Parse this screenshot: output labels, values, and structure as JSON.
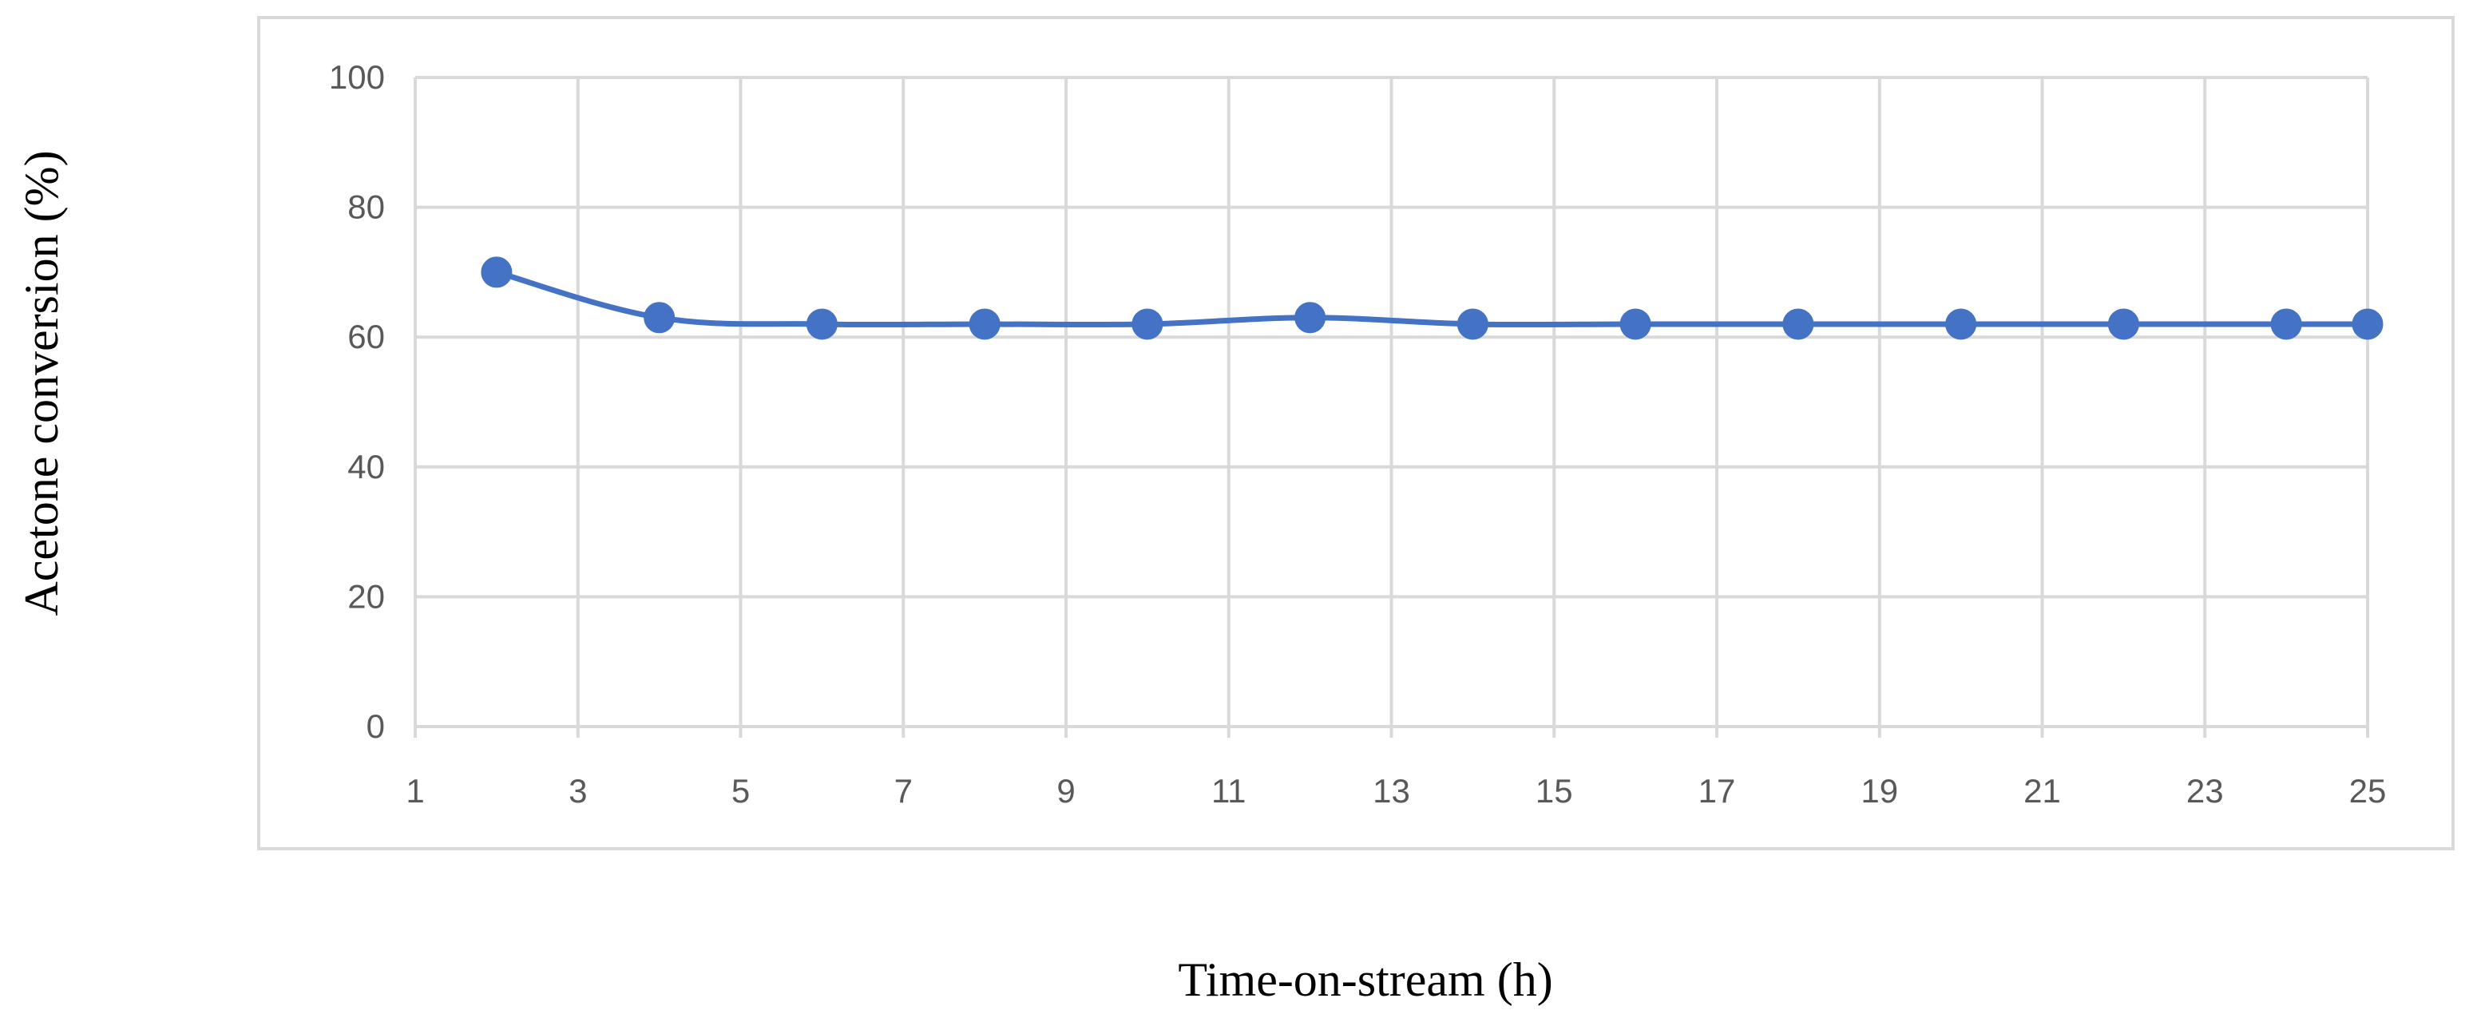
{
  "chart_data": {
    "type": "line",
    "title": "",
    "xlabel": "Time-on-stream (h)",
    "ylabel": "Acetone conversion (%)",
    "xlim": [
      1,
      25
    ],
    "ylim": [
      0,
      100
    ],
    "x_ticks": [
      1,
      3,
      5,
      7,
      9,
      11,
      13,
      15,
      17,
      19,
      21,
      23,
      25
    ],
    "y_ticks": [
      0,
      20,
      40,
      60,
      80,
      100
    ],
    "grid": true,
    "legend": "none",
    "series": [
      {
        "color": "#4472c4",
        "marker": "circle",
        "smooth": true,
        "x": [
          2,
          4,
          6,
          8,
          10,
          12,
          14,
          16,
          18,
          20,
          22,
          24,
          25
        ],
        "y": [
          70,
          63,
          62,
          62,
          62,
          63,
          62,
          62,
          62,
          62,
          62,
          62,
          62
        ]
      }
    ]
  }
}
